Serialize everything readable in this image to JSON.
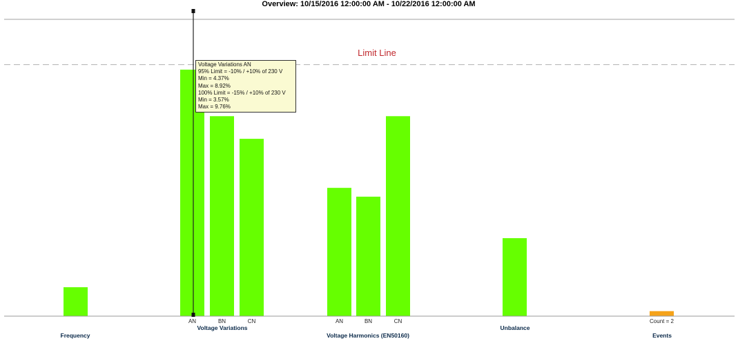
{
  "chart_data": {
    "type": "bar",
    "title": "Overview: 10/15/2016 12:00:00 AM - 10/22/2016 12:00:00 AM",
    "ylim": [
      0,
      118
    ],
    "limit_line": {
      "label": "Limit Line",
      "value": 100
    },
    "bars": [
      {
        "id": "frequency",
        "label": "",
        "value": 11.5,
        "color": "#66ff00"
      },
      {
        "id": "vv-an",
        "label": "AN",
        "value": 98,
        "color": "#66ff00"
      },
      {
        "id": "vv-bn",
        "label": "BN",
        "value": 79.5,
        "color": "#66ff00"
      },
      {
        "id": "vv-cn",
        "label": "CN",
        "value": 70.5,
        "color": "#66ff00"
      },
      {
        "id": "vh-an",
        "label": "AN",
        "value": 51,
        "color": "#66ff00"
      },
      {
        "id": "vh-bn",
        "label": "BN",
        "value": 47.5,
        "color": "#66ff00"
      },
      {
        "id": "vh-cn",
        "label": "CN",
        "value": 79.5,
        "color": "#66ff00"
      },
      {
        "id": "unbalance",
        "label": "",
        "value": 31,
        "color": "#66ff00"
      },
      {
        "id": "events",
        "label": "Count = 2",
        "value": 2,
        "color": "#f5a31a"
      }
    ],
    "groups": [
      {
        "id": "frequency",
        "label": "Frequency"
      },
      {
        "id": "voltage-variations",
        "label": "Voltage Variations"
      },
      {
        "id": "voltage-harmonics",
        "label": "Voltage Harmonics (EN50160)"
      },
      {
        "id": "unbalance",
        "label": "Unbalance"
      },
      {
        "id": "events",
        "label": "Events"
      }
    ],
    "grid": false
  },
  "tooltip": {
    "lines": [
      "Voltage Variations AN",
      "95% Limit = -10% / +10% of 230 V",
      "Min = 4.37%",
      "Max = 8.92%",
      "100% Limit = -15% / +10% of 230 V",
      "Min = 3.57%",
      "Max = 9.76%"
    ]
  },
  "colors": {
    "bar": "#66ff00",
    "events_bar": "#f5a31a",
    "limit_label": "#c0282d",
    "limit_line": "#b0b0b0",
    "axis": "#999999"
  }
}
